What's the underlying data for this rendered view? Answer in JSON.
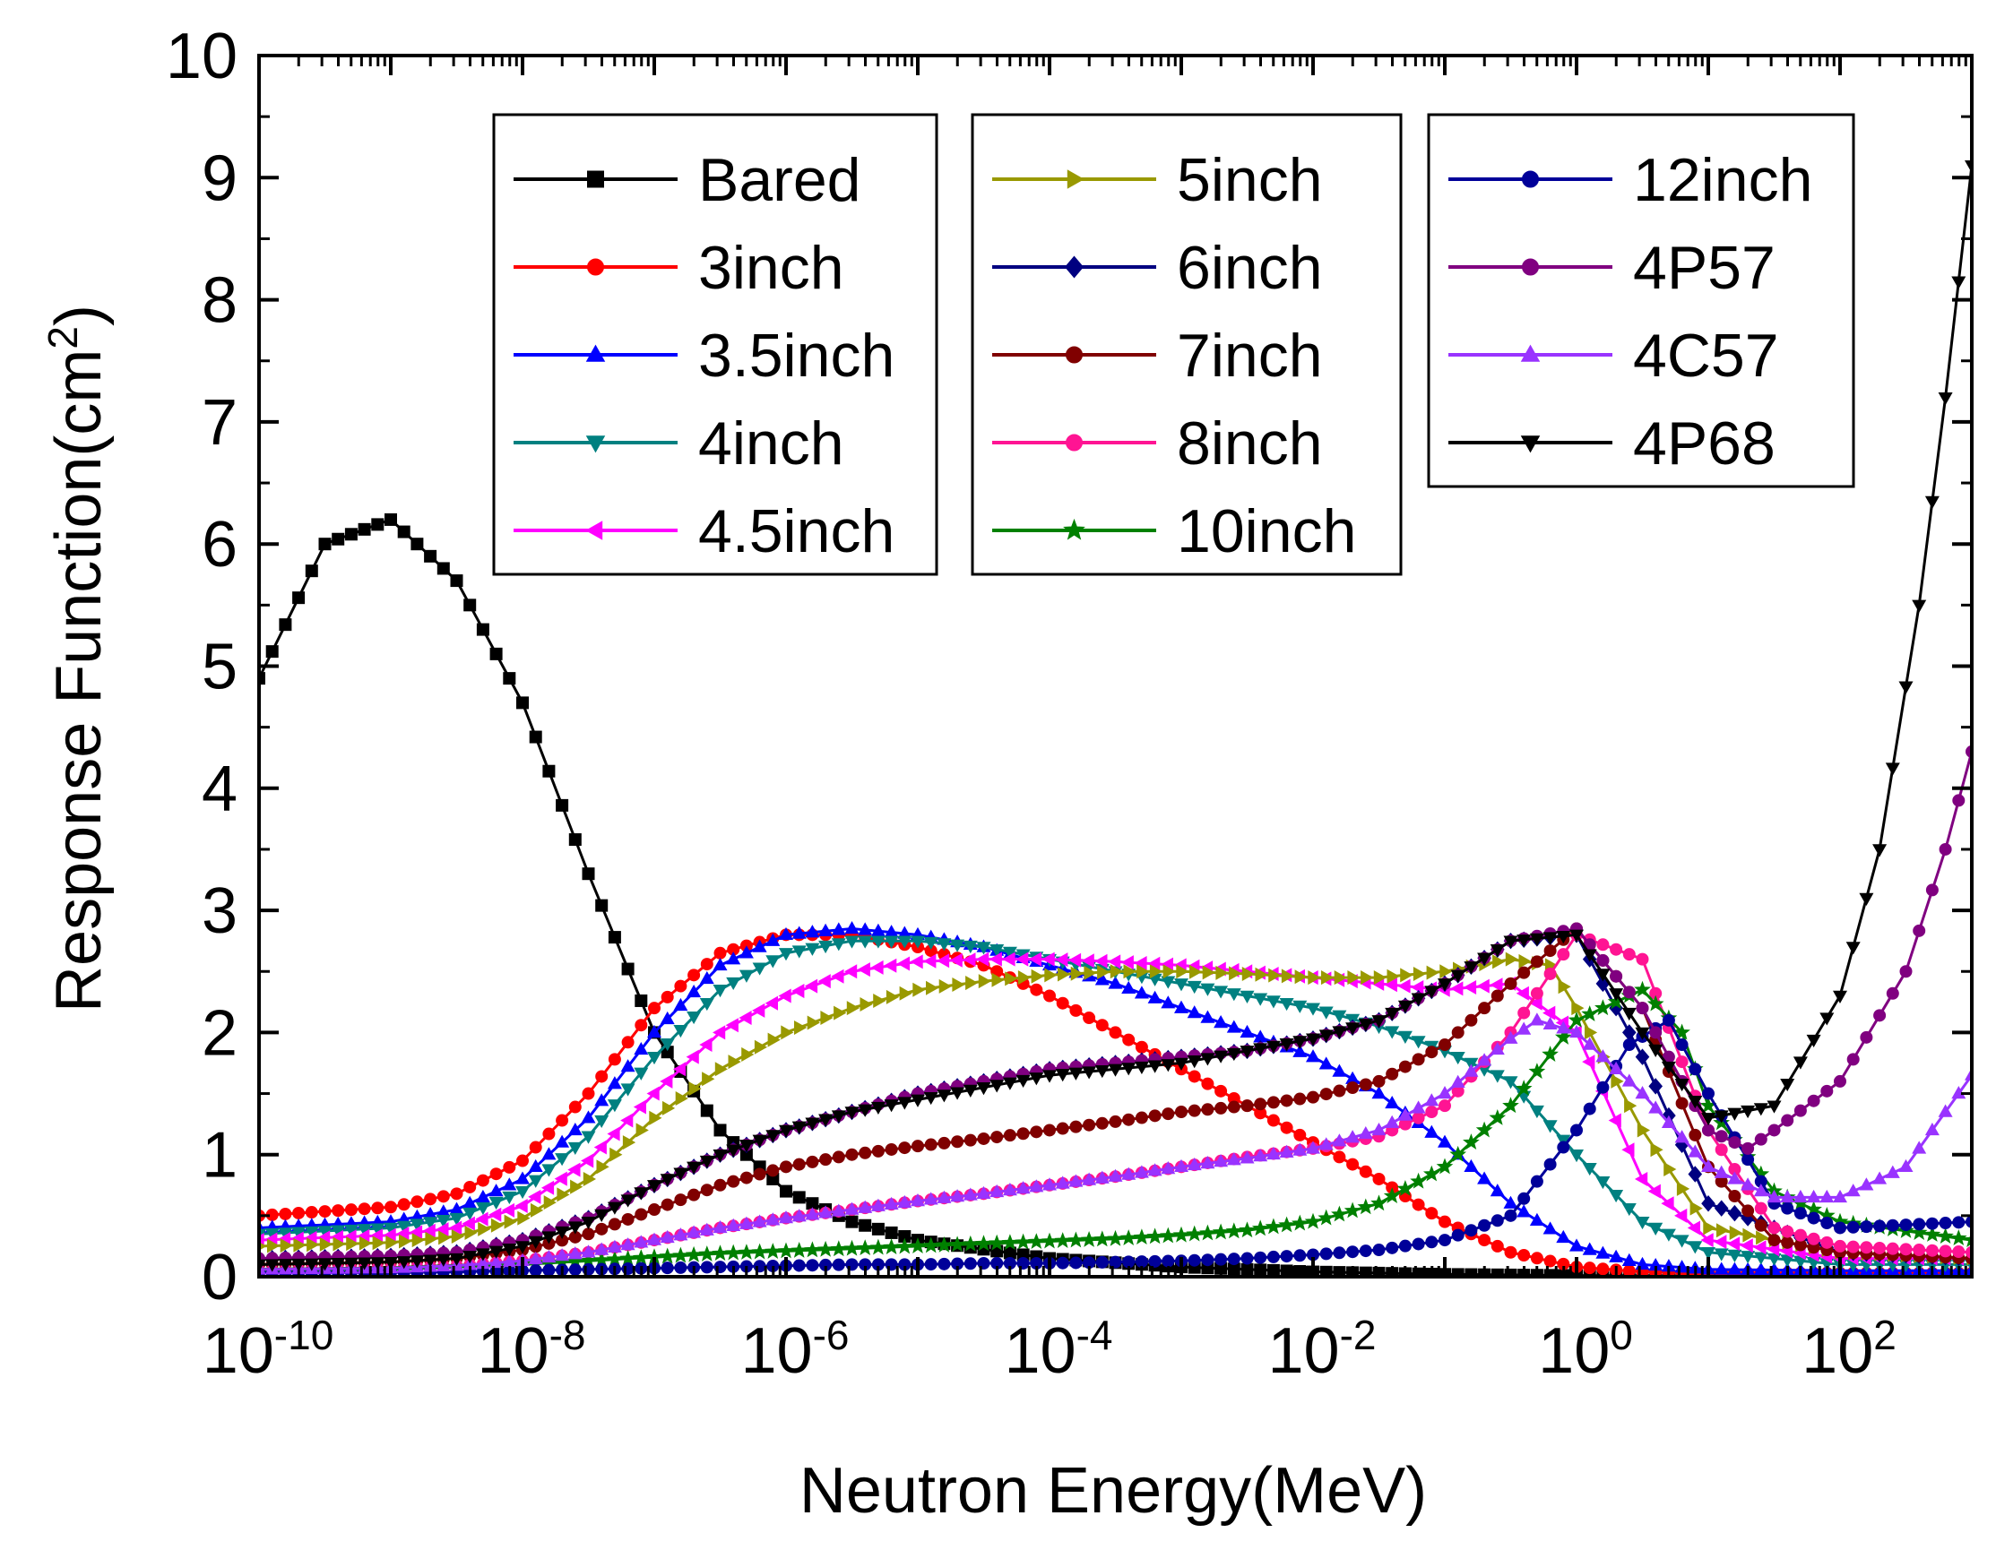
{
  "chart_data": {
    "type": "line",
    "title": "",
    "xlabel": "Neutron Energy(MeV)",
    "ylabel": "Response Function(cm²)",
    "xscale": "log",
    "xlim_exponent": [
      -10,
      3
    ],
    "ylim": [
      0,
      10
    ],
    "y_ticks": [
      "0",
      "1",
      "2",
      "3",
      "4",
      "5",
      "6",
      "7",
      "8",
      "9",
      "10"
    ],
    "x_tick_labels": [
      {
        "base": "10",
        "exp": "-10"
      },
      {
        "base": "10",
        "exp": "-8"
      },
      {
        "base": "10",
        "exp": "-6"
      },
      {
        "base": "10",
        "exp": "-4"
      },
      {
        "base": "10",
        "exp": "-2"
      },
      {
        "base": "10",
        "exp": "0"
      },
      {
        "base": "10",
        "exp": "2"
      }
    ],
    "grid": false,
    "legend_columns": [
      [
        "Bared",
        "3inch",
        "3.5inch",
        "4inch",
        "4.5inch"
      ],
      [
        "5inch",
        "6inch",
        "7inch",
        "8inch",
        "10inch"
      ],
      [
        "12inch",
        "4P57",
        "4C57",
        "4P68"
      ]
    ],
    "series": [
      {
        "name": "Bared",
        "color": "#000000",
        "marker": "square",
        "log10_energy": [
          -10,
          -9.5,
          -9,
          -8.5,
          -8,
          -7.5,
          -7,
          -6.5,
          -6,
          -5.5,
          -5,
          -4,
          -3,
          -2,
          -1,
          0,
          3
        ],
        "values": [
          4.9,
          6.0,
          6.2,
          5.7,
          4.7,
          3.3,
          2.0,
          1.2,
          0.7,
          0.45,
          0.3,
          0.15,
          0.08,
          0.04,
          0.02,
          0.01,
          0.0
        ]
      },
      {
        "name": "3inch",
        "color": "#ff0000",
        "marker": "circle",
        "log10_energy": [
          -10,
          -9,
          -8.5,
          -8,
          -7.5,
          -7,
          -6.5,
          -6,
          -5.5,
          -5,
          -4.5,
          -4,
          -3.5,
          -3,
          -2.5,
          -2,
          -1.5,
          -1,
          -0.5,
          0,
          0.5,
          1,
          2,
          3
        ],
        "values": [
          0.5,
          0.57,
          0.68,
          0.95,
          1.5,
          2.2,
          2.65,
          2.8,
          2.8,
          2.7,
          2.55,
          2.3,
          2.0,
          1.7,
          1.4,
          1.1,
          0.8,
          0.45,
          0.2,
          0.08,
          0.04,
          0.03,
          0.03,
          0.03
        ]
      },
      {
        "name": "3.5inch",
        "color": "#0000ff",
        "marker": "triangle-up",
        "log10_energy": [
          -10,
          -9,
          -8.5,
          -8,
          -7.5,
          -7,
          -6.5,
          -6,
          -5.5,
          -5,
          -4.5,
          -4,
          -3.5,
          -3,
          -2.5,
          -2,
          -1.5,
          -1,
          -0.5,
          0,
          0.5,
          1,
          2,
          3
        ],
        "values": [
          0.4,
          0.45,
          0.55,
          0.8,
          1.3,
          2.0,
          2.55,
          2.8,
          2.85,
          2.8,
          2.7,
          2.55,
          2.4,
          2.2,
          2.0,
          1.8,
          1.5,
          1.1,
          0.6,
          0.25,
          0.1,
          0.06,
          0.05,
          0.05
        ]
      },
      {
        "name": "4inch",
        "color": "#008080",
        "marker": "triangle-down",
        "log10_energy": [
          -10,
          -9,
          -8.5,
          -8,
          -7.5,
          -7,
          -6.5,
          -6,
          -5.5,
          -5,
          -4.5,
          -4,
          -3.5,
          -3,
          -2.5,
          -2,
          -1.5,
          -1,
          -0.5,
          0,
          0.5,
          1,
          2,
          3
        ],
        "values": [
          0.35,
          0.4,
          0.48,
          0.7,
          1.15,
          1.8,
          2.35,
          2.65,
          2.75,
          2.75,
          2.7,
          2.6,
          2.5,
          2.4,
          2.3,
          2.2,
          2.05,
          1.85,
          1.6,
          1.0,
          0.45,
          0.2,
          0.1,
          0.1
        ]
      },
      {
        "name": "4.5inch",
        "color": "#ff00ff",
        "marker": "triangle-left",
        "log10_energy": [
          -10,
          -9,
          -8.5,
          -8,
          -7.5,
          -7,
          -6.5,
          -6,
          -5.5,
          -5,
          -4.5,
          -4,
          -3.5,
          -3,
          -2.5,
          -2,
          -1.5,
          -1,
          -0.5,
          0,
          0.5,
          1,
          2,
          3
        ],
        "values": [
          0.3,
          0.34,
          0.4,
          0.58,
          0.95,
          1.5,
          2.0,
          2.3,
          2.5,
          2.58,
          2.6,
          2.6,
          2.58,
          2.55,
          2.5,
          2.45,
          2.4,
          2.35,
          2.4,
          2.0,
          0.8,
          0.3,
          0.15,
          0.15
        ]
      },
      {
        "name": "5inch",
        "color": "#999900",
        "marker": "triangle-right",
        "log10_energy": [
          -10,
          -9,
          -8.5,
          -8,
          -7.5,
          -7,
          -6.5,
          -6,
          -5.5,
          -5,
          -4.5,
          -4,
          -3.5,
          -3,
          -2.5,
          -2,
          -1.5,
          -1,
          -0.5,
          -0.2,
          0,
          0.5,
          1,
          2,
          3
        ],
        "values": [
          0.25,
          0.28,
          0.33,
          0.48,
          0.8,
          1.3,
          1.7,
          2.0,
          2.2,
          2.35,
          2.42,
          2.47,
          2.5,
          2.5,
          2.48,
          2.45,
          2.45,
          2.5,
          2.6,
          2.55,
          2.2,
          1.2,
          0.4,
          0.2,
          0.15
        ]
      },
      {
        "name": "6inch",
        "color": "#000080",
        "marker": "diamond",
        "log10_energy": [
          -10,
          -9,
          -8.5,
          -8,
          -7.5,
          -7,
          -6.5,
          -6,
          -5.5,
          -5,
          -4.5,
          -4,
          -3.5,
          -3,
          -2.5,
          -2,
          -1.5,
          -1,
          -0.5,
          0,
          0.5,
          1,
          2,
          3
        ],
        "values": [
          0.15,
          0.17,
          0.2,
          0.3,
          0.48,
          0.75,
          1.0,
          1.2,
          1.35,
          1.5,
          1.6,
          1.7,
          1.75,
          1.8,
          1.85,
          1.95,
          2.1,
          2.4,
          2.75,
          2.8,
          1.8,
          0.6,
          0.2,
          0.15
        ]
      },
      {
        "name": "7inch",
        "color": "#800000",
        "marker": "circle",
        "log10_energy": [
          -10,
          -9,
          -8.5,
          -8,
          -7.5,
          -7,
          -6.5,
          -6,
          -5.5,
          -5,
          -4.5,
          -4,
          -3.5,
          -3,
          -2.5,
          -2,
          -1.5,
          -1,
          -0.5,
          0,
          0.5,
          1,
          1.5,
          2,
          3
        ],
        "values": [
          0.1,
          0.12,
          0.15,
          0.22,
          0.35,
          0.55,
          0.75,
          0.9,
          1.0,
          1.07,
          1.13,
          1.2,
          1.27,
          1.35,
          1.4,
          1.47,
          1.6,
          1.9,
          2.4,
          2.85,
          2.2,
          0.9,
          0.3,
          0.2,
          0.15
        ]
      },
      {
        "name": "8inch",
        "color": "#ff1493",
        "marker": "circle",
        "log10_energy": [
          -10,
          -9,
          -8.5,
          -8,
          -7.5,
          -7,
          -6.5,
          -6,
          -5.5,
          -5,
          -4.5,
          -4,
          -3.5,
          -3,
          -2.5,
          -2,
          -1.5,
          -1,
          -0.5,
          0,
          0.5,
          1,
          1.5,
          2,
          3
        ],
        "values": [
          0.05,
          0.07,
          0.09,
          0.13,
          0.2,
          0.3,
          0.4,
          0.48,
          0.55,
          0.62,
          0.68,
          0.75,
          0.82,
          0.9,
          0.98,
          1.05,
          1.15,
          1.4,
          2.0,
          2.8,
          2.6,
          1.2,
          0.4,
          0.25,
          0.2
        ]
      },
      {
        "name": "10inch",
        "color": "#008000",
        "marker": "star",
        "log10_energy": [
          -10,
          -9,
          -8.5,
          -8,
          -7.5,
          -7,
          -6.5,
          -6,
          -5.5,
          -5,
          -4.5,
          -4,
          -3.5,
          -3,
          -2.5,
          -2,
          -1.5,
          -1,
          -0.5,
          0,
          0.5,
          0.8,
          1,
          1.5,
          2,
          3
        ],
        "values": [
          0.05,
          0.06,
          0.08,
          0.1,
          0.13,
          0.16,
          0.19,
          0.21,
          0.23,
          0.25,
          0.27,
          0.29,
          0.31,
          0.34,
          0.38,
          0.45,
          0.6,
          0.9,
          1.4,
          2.1,
          2.35,
          2.0,
          1.4,
          0.7,
          0.45,
          0.3
        ]
      },
      {
        "name": "12inch",
        "color": "#000099",
        "marker": "circle",
        "log10_energy": [
          -10,
          -9,
          -8.5,
          -8,
          -7.5,
          -7,
          -6.5,
          -6,
          -5.5,
          -5,
          -4.5,
          -4,
          -3.5,
          -3,
          -2.5,
          -2,
          -1.5,
          -1,
          -0.5,
          0,
          0.4,
          0.7,
          1,
          1.5,
          2,
          3
        ],
        "values": [
          0.03,
          0.035,
          0.04,
          0.05,
          0.06,
          0.07,
          0.08,
          0.09,
          0.1,
          0.1,
          0.11,
          0.11,
          0.12,
          0.13,
          0.15,
          0.18,
          0.22,
          0.3,
          0.5,
          1.2,
          1.9,
          2.1,
          1.5,
          0.6,
          0.4,
          0.45
        ]
      },
      {
        "name": "4P57",
        "color": "#800080",
        "marker": "circle",
        "log10_energy": [
          -10,
          -9,
          -8.5,
          -8,
          -7.5,
          -7,
          -6.5,
          -6,
          -5.5,
          -5,
          -4.5,
          -4,
          -3.5,
          -3,
          -2.5,
          -2,
          -1.5,
          -1,
          -0.5,
          0,
          0.5,
          1,
          1.3,
          1.5,
          2,
          2.5,
          2.8,
          3
        ],
        "values": [
          0.15,
          0.17,
          0.2,
          0.3,
          0.48,
          0.75,
          1.0,
          1.2,
          1.35,
          1.5,
          1.6,
          1.7,
          1.75,
          1.8,
          1.85,
          1.95,
          2.1,
          2.4,
          2.75,
          2.85,
          2.2,
          1.2,
          1.05,
          1.2,
          1.6,
          2.5,
          3.5,
          4.3
        ]
      },
      {
        "name": "4C57",
        "color": "#9933ff",
        "marker": "triangle-up",
        "log10_energy": [
          -10,
          -9,
          -8.5,
          -8,
          -7.5,
          -7,
          -6.5,
          -6,
          -5.5,
          -5,
          -4.5,
          -4,
          -3.5,
          -3,
          -2.5,
          -2,
          -1.5,
          -1,
          -0.5,
          -0.3,
          0,
          0.5,
          1,
          1.5,
          2,
          2.5,
          3
        ],
        "values": [
          0.06,
          0.07,
          0.09,
          0.13,
          0.2,
          0.3,
          0.4,
          0.48,
          0.55,
          0.62,
          0.68,
          0.75,
          0.82,
          0.9,
          0.97,
          1.05,
          1.2,
          1.5,
          1.95,
          2.1,
          2.0,
          1.5,
          0.9,
          0.65,
          0.65,
          0.9,
          1.65
        ]
      },
      {
        "name": "4P68",
        "color": "#000000",
        "marker": "triangle-down",
        "log10_energy": [
          -10,
          -9,
          -8.5,
          -8,
          -7.5,
          -7,
          -6.5,
          -6,
          -5.5,
          -5,
          -4.5,
          -4,
          -3.5,
          -3,
          -2.5,
          -2,
          -1.5,
          -1,
          -0.5,
          0,
          0.5,
          1,
          1.5,
          2,
          2.3,
          2.6,
          2.8,
          3
        ],
        "values": [
          0.1,
          0.12,
          0.15,
          0.25,
          0.45,
          0.75,
          1.0,
          1.2,
          1.35,
          1.45,
          1.55,
          1.65,
          1.7,
          1.75,
          1.85,
          1.95,
          2.1,
          2.4,
          2.75,
          2.8,
          2.0,
          1.3,
          1.4,
          2.3,
          3.5,
          5.5,
          7.2,
          9.1
        ]
      }
    ]
  }
}
